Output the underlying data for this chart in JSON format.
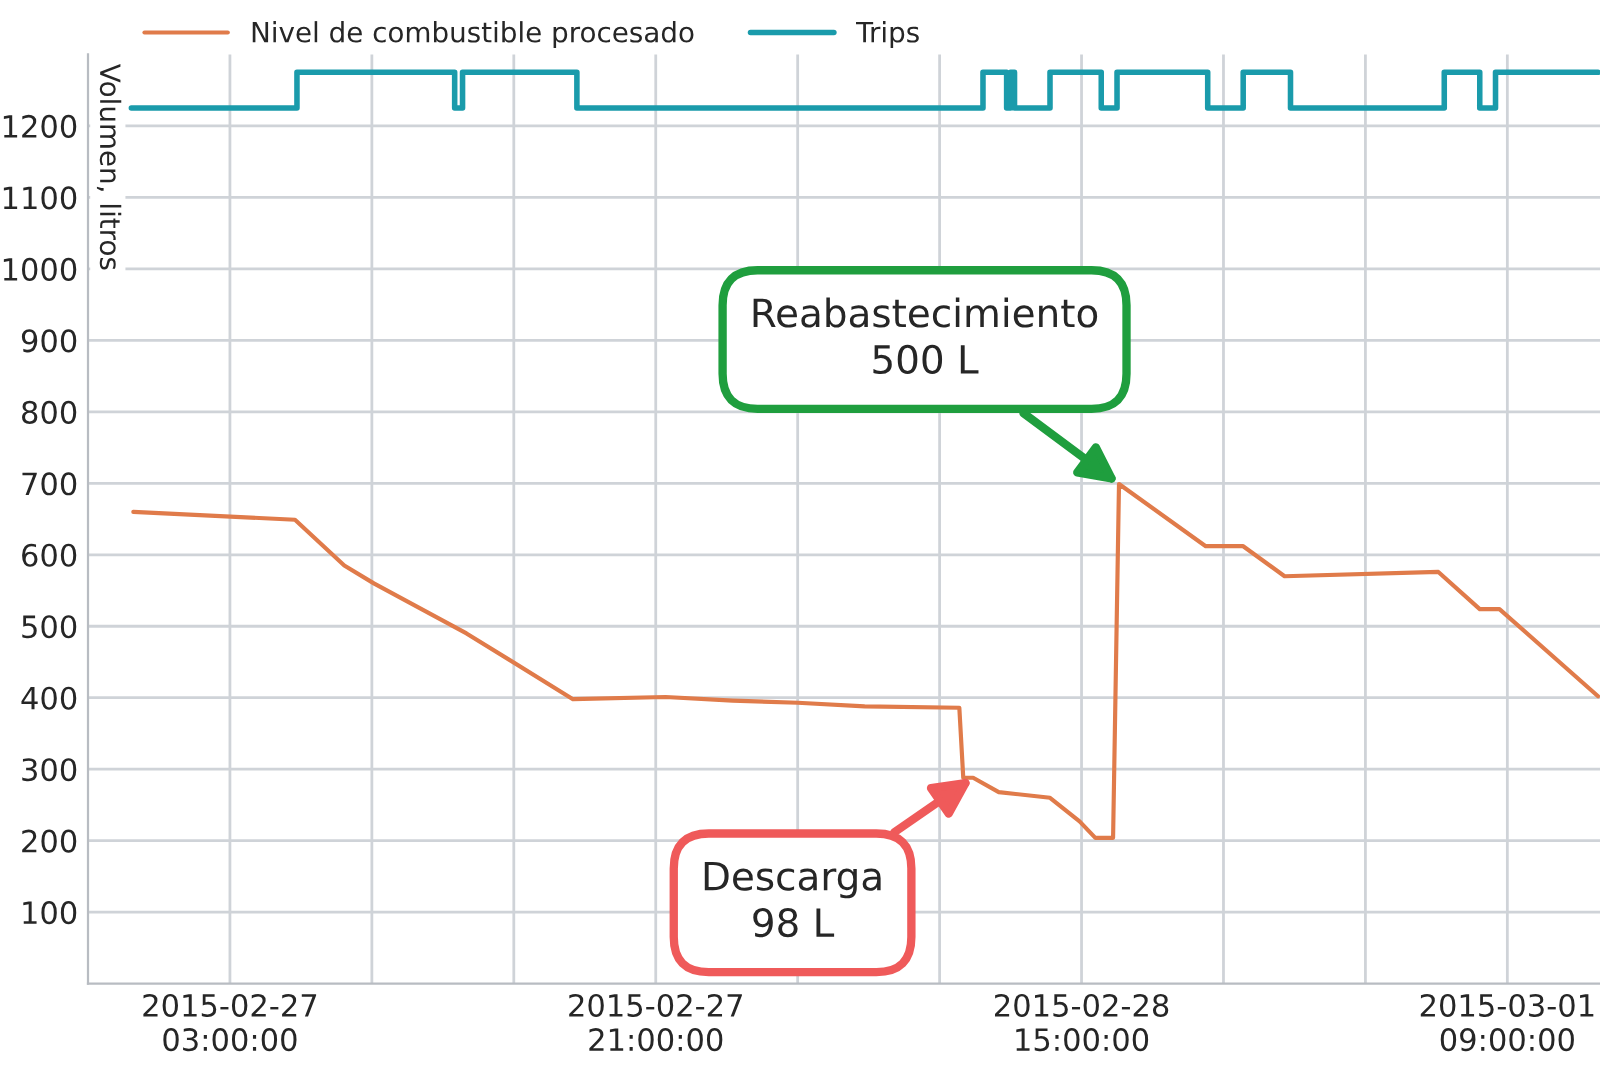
{
  "chart_data": {
    "type": "line",
    "ylabel": "Volumen, litros",
    "xlim": [
      "2015-02-26T21:00",
      "2015-03-01T12:55"
    ],
    "ylim": [
      0,
      1300
    ],
    "yticks": [
      100,
      200,
      300,
      400,
      500,
      600,
      700,
      800,
      900,
      1000,
      1100,
      1200
    ],
    "xticks": [
      {
        "value": "2015-02-27T03:00",
        "label": "2015-02-27\n03:00:00"
      },
      {
        "value": "2015-02-27T09:00",
        "label": null
      },
      {
        "value": "2015-02-27T15:00",
        "label": null
      },
      {
        "value": "2015-02-27T21:00",
        "label": "2015-02-27\n21:00:00"
      },
      {
        "value": "2015-02-28T03:00",
        "label": null
      },
      {
        "value": "2015-02-28T09:00",
        "label": null
      },
      {
        "value": "2015-02-28T15:00",
        "label": "2015-02-28\n15:00:00"
      },
      {
        "value": "2015-02-28T21:00",
        "label": null
      },
      {
        "value": "2015-03-01T03:00",
        "label": null
      },
      {
        "value": "2015-03-01T09:00",
        "label": "2015-03-01\n09:00:00"
      }
    ],
    "grid": true,
    "legend": "top",
    "series": [
      {
        "name": "Nivel de combustible procesado",
        "color": "#e07b4a",
        "x": [
          "2015-02-26T22:55",
          "2015-02-27T05:45",
          "2015-02-27T07:50",
          "2015-02-27T09:05",
          "2015-02-27T13:00",
          "2015-02-27T17:30",
          "2015-02-27T21:25",
          "2015-02-28T00:15",
          "2015-02-28T03:00",
          "2015-02-28T05:50",
          "2015-02-28T09:50",
          "2015-02-28T10:00",
          "2015-02-28T10:25",
          "2015-02-28T11:30",
          "2015-02-28T13:40",
          "2015-02-28T14:55",
          "2015-02-28T15:35",
          "2015-02-28T16:20",
          "2015-02-28T16:35",
          "2015-02-28T20:15",
          "2015-02-28T21:50",
          "2015-02-28T23:35",
          "2015-03-01T06:05",
          "2015-03-01T07:50",
          "2015-03-01T08:40",
          "2015-03-01T12:50"
        ],
        "values": [
          660,
          649,
          585,
          560,
          490,
          398,
          401,
          396,
          393,
          388,
          386,
          288,
          288,
          268,
          260,
          227,
          204,
          204,
          699,
          612,
          612,
          570,
          576,
          524,
          524,
          402
        ]
      },
      {
        "name": "Trips",
        "type": "step",
        "color": "#1a9bab",
        "x": [
          "2015-02-26T22:50",
          "2015-02-27T05:50",
          "2015-02-27T12:30",
          "2015-02-27T12:50",
          "2015-02-27T17:40",
          "2015-02-28T10:50",
          "2015-02-28T11:50",
          "2015-02-28T12:00",
          "2015-02-28T12:10",
          "2015-02-28T13:40",
          "2015-02-28T15:50",
          "2015-02-28T16:30",
          "2015-02-28T20:20",
          "2015-02-28T21:50",
          "2015-02-28T23:50",
          "2015-03-01T06:20",
          "2015-03-01T07:50",
          "2015-03-01T08:30",
          "2015-03-01T12:50"
        ],
        "values": [
          1225,
          1275,
          1225,
          1275,
          1225,
          1275,
          1225,
          1275,
          1225,
          1275,
          1225,
          1275,
          1225,
          1275,
          1225,
          1275,
          1225,
          1275,
          1275
        ]
      }
    ],
    "annotations": [
      {
        "text": "Reabastecimiento\n500 L",
        "x": "2015-02-28T16:35",
        "y": 699
      },
      {
        "text": "Descarga\n98 L",
        "x": "2015-02-28T10:25",
        "y": 288
      }
    ]
  }
}
